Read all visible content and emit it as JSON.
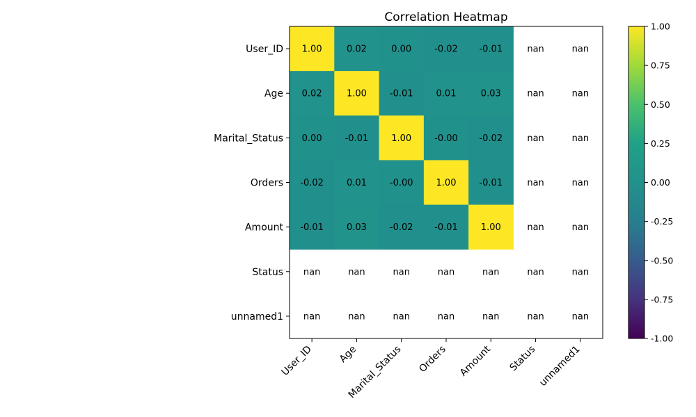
{
  "chart_data": {
    "type": "heatmap",
    "title": "Correlation Heatmap",
    "rows": [
      "User_ID",
      "Age",
      "Marital_Status",
      "Orders",
      "Amount",
      "Status",
      "unnamed1"
    ],
    "cols": [
      "User_ID",
      "Age",
      "Marital_Status",
      "Orders",
      "Amount",
      "Status",
      "unnamed1"
    ],
    "values": [
      [
        1.0,
        0.02,
        0.0,
        -0.02,
        -0.01,
        null,
        null
      ],
      [
        0.02,
        1.0,
        -0.01,
        0.01,
        0.03,
        null,
        null
      ],
      [
        0.0,
        -0.01,
        1.0,
        -0.0,
        -0.02,
        null,
        null
      ],
      [
        -0.02,
        0.01,
        -0.0,
        1.0,
        -0.01,
        null,
        null
      ],
      [
        -0.01,
        0.03,
        -0.02,
        -0.01,
        1.0,
        null,
        null
      ],
      [
        null,
        null,
        null,
        null,
        null,
        null,
        null
      ],
      [
        null,
        null,
        null,
        null,
        null,
        null,
        null
      ]
    ],
    "cell_labels": [
      [
        "1.00",
        "0.02",
        "0.00",
        "-0.02",
        "-0.01",
        "nan",
        "nan"
      ],
      [
        "0.02",
        "1.00",
        "-0.01",
        "0.01",
        "0.03",
        "nan",
        "nan"
      ],
      [
        "0.00",
        "-0.01",
        "1.00",
        "-0.00",
        "-0.02",
        "nan",
        "nan"
      ],
      [
        "-0.02",
        "0.01",
        "-0.00",
        "1.00",
        "-0.01",
        "nan",
        "nan"
      ],
      [
        "-0.01",
        "0.03",
        "-0.02",
        "-0.01",
        "1.00",
        "nan",
        "nan"
      ],
      [
        "nan",
        "nan",
        "nan",
        "nan",
        "nan",
        "nan",
        "nan"
      ],
      [
        "nan",
        "nan",
        "nan",
        "nan",
        "nan",
        "nan",
        "nan"
      ]
    ],
    "colormap": "viridis",
    "vmin": -1.0,
    "vmax": 1.0,
    "colorbar_ticks": [
      "-1.00",
      "-0.75",
      "-0.50",
      "-0.25",
      "0.00",
      "0.25",
      "0.50",
      "0.75",
      "1.00"
    ],
    "grid": false
  }
}
